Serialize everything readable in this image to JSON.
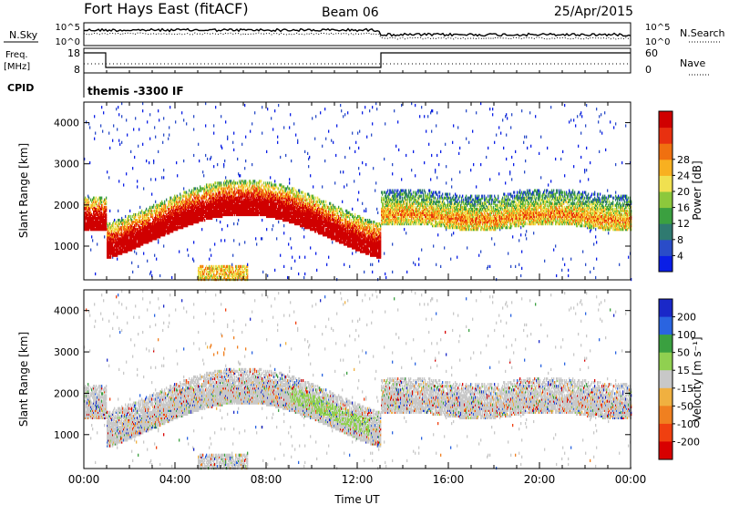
{
  "header": {
    "station": "Fort Hays East (fitACF)",
    "beam": "Beam 06",
    "date": "25/Apr/2015"
  },
  "top_panels": {
    "noise": {
      "left_label": "N.Sky",
      "right_label": "N.Search",
      "left_ticks": [
        "10^5",
        "10^0"
      ],
      "right_ticks": [
        "10^5",
        "10^0"
      ]
    },
    "freq": {
      "left_label_1": "Freq.",
      "left_label_2": "[MHz]",
      "right_label": "Nave",
      "left_ticks": [
        "18",
        "8"
      ],
      "right_ticks": [
        "60",
        "0"
      ]
    },
    "cpid": {
      "label": "CPID",
      "value": "themis -3300 IF"
    }
  },
  "chart_data": [
    {
      "type": "heatmap",
      "name": "power",
      "ylabel": "Slant Range [km]",
      "xlabel": "",
      "x_range": [
        0,
        24
      ],
      "ylim": [
        180,
        4500
      ],
      "y_ticks": [
        1000,
        2000,
        3000,
        4000
      ],
      "colorbar": {
        "label": "Power [dB]",
        "ticks": [
          "4",
          "8",
          "12",
          "16",
          "20",
          "24",
          "28"
        ],
        "colors": [
          "#0a1ee6",
          "#2a4cc8",
          "#2f7a70",
          "#3ba040",
          "#8cc83c",
          "#f0e050",
          "#f8b020",
          "#f07010",
          "#e83010",
          "#d00000"
        ]
      }
    },
    {
      "type": "heatmap",
      "name": "velocity",
      "ylabel": "Slant Range [km]",
      "xlabel": "Time UT",
      "x_range": [
        0,
        24
      ],
      "ylim": [
        180,
        4500
      ],
      "y_ticks": [
        1000,
        2000,
        3000,
        4000
      ],
      "x_ticks": [
        "00:00",
        "04:00",
        "08:00",
        "12:00",
        "16:00",
        "20:00",
        "00:00"
      ],
      "colorbar": {
        "label": "Velocity [m s⁻¹]",
        "ticks": [
          "200",
          "100",
          "50",
          "15",
          "-15",
          "-50",
          "-100",
          "-200"
        ],
        "colors": [
          "#1a28c8",
          "#2a64e0",
          "#3aa040",
          "#90d050",
          "#c8c8c8",
          "#f0b040",
          "#f08020",
          "#f04010",
          "#d80000"
        ]
      }
    }
  ]
}
